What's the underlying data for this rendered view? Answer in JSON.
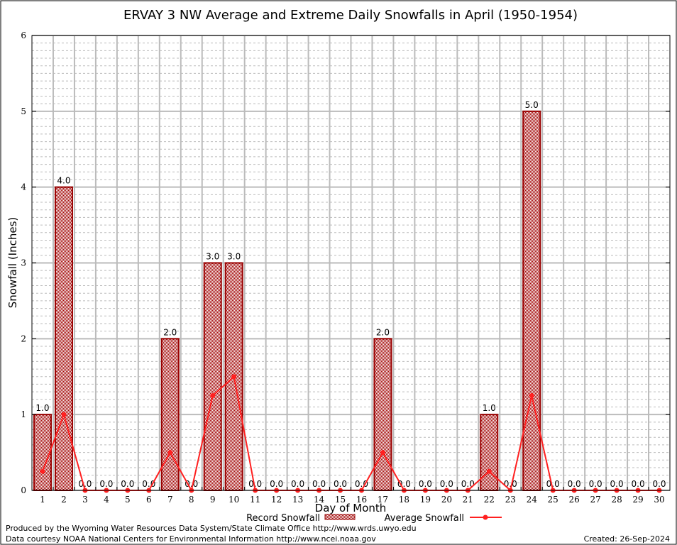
{
  "chart_data": {
    "type": "bar",
    "title": "ERVAY 3 NW Average and Extreme Daily Snowfalls in April (1950-1954)",
    "xlabel": "Day of Month",
    "ylabel": "Snowfall (Inches)",
    "ylim": [
      0,
      6
    ],
    "yticks": [
      0,
      1,
      2,
      3,
      4,
      5,
      6
    ],
    "grid": true,
    "categories": [
      "1",
      "2",
      "3",
      "4",
      "5",
      "6",
      "7",
      "8",
      "9",
      "10",
      "11",
      "12",
      "13",
      "14",
      "15",
      "16",
      "17",
      "18",
      "19",
      "20",
      "21",
      "22",
      "23",
      "24",
      "25",
      "26",
      "27",
      "28",
      "29",
      "30"
    ],
    "series": [
      {
        "name": "Record Snowfall",
        "kind": "bar",
        "color": "#990000",
        "values": [
          1,
          4,
          0,
          0,
          0,
          0,
          2,
          0,
          3,
          3,
          0,
          0,
          0,
          0,
          0,
          0,
          2,
          0,
          0,
          0,
          0,
          1,
          0,
          5,
          0,
          0,
          0,
          0,
          0,
          0
        ],
        "labels": [
          "1.0",
          "4.0",
          "0.0",
          "0.0",
          "0.0",
          "0.0",
          "2.0",
          "0.0",
          "3.0",
          "3.0",
          "0.0",
          "0.0",
          "0.0",
          "0.0",
          "0.0",
          "0.0",
          "2.0",
          "0.0",
          "0.0",
          "0.0",
          "0.0",
          "1.0",
          "0.0",
          "5.0",
          "0.0",
          "0.0",
          "0.0",
          "0.0",
          "0.0",
          "0.0"
        ]
      },
      {
        "name": "Average Snowfall",
        "kind": "line",
        "color": "#ff2020",
        "values": [
          0.25,
          1.0,
          0,
          0,
          0,
          0,
          0.5,
          0,
          1.25,
          1.5,
          0,
          0,
          0,
          0,
          0,
          0,
          0.5,
          0,
          0,
          0,
          0,
          0.25,
          0,
          1.25,
          0,
          0,
          0,
          0,
          0,
          0
        ]
      }
    ],
    "legend": "bottom-center"
  },
  "footer": {
    "produced": "Produced by the Wyoming Water Resources Data System/State Climate Office http://www.wrds.uwyo.edu",
    "courtesy": "Data courtesy NOAA National Centers for Environmental Information http://www.ncei.noaa.gov",
    "created": "Created: 26-Sep-2024"
  }
}
